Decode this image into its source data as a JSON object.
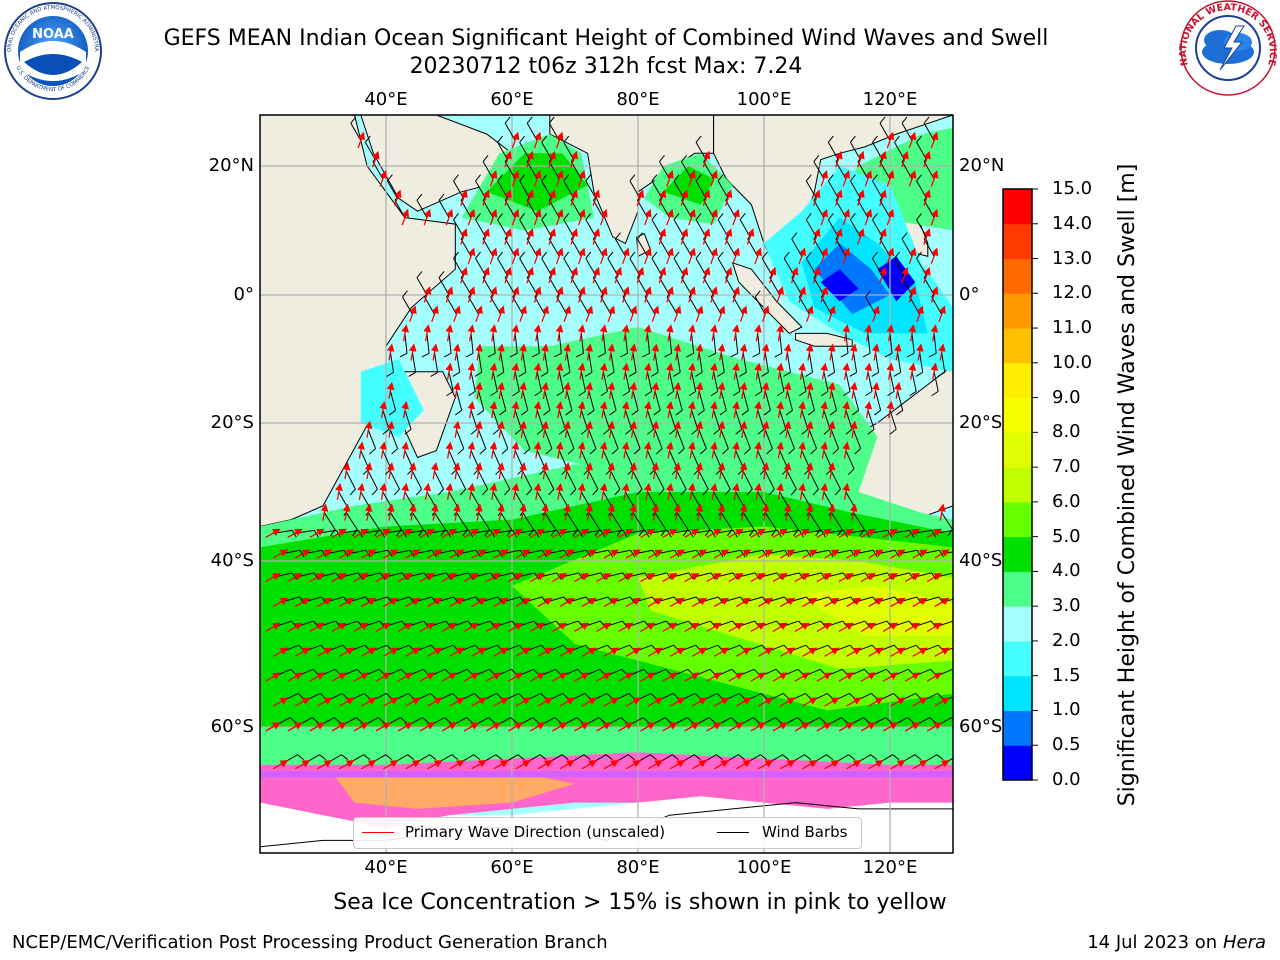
{
  "header": {
    "title_line1": "GEFS MEAN Indian Ocean Significant Height of Combined Wind Waves and Swell",
    "title_line2": "20230712 t06z 312h fcst   Max: 7.24"
  },
  "map": {
    "lon_ticks": [
      "40°E",
      "60°E",
      "80°E",
      "100°E",
      "120°E"
    ],
    "lat_ticks": [
      "20°N",
      "0°",
      "20°S",
      "40°S",
      "60°S"
    ],
    "lon_values": [
      40,
      60,
      80,
      100,
      120
    ],
    "lat_values": [
      20,
      0,
      -20,
      -40,
      -60
    ],
    "extent": {
      "lon_min": 20,
      "lon_max": 130,
      "lat_min": -70,
      "lat_max": 28
    },
    "colors": {
      "land": "#efede0",
      "sea_ice": "#ff66cc",
      "coastline": "#000000",
      "grid": "#b0b0b0",
      "wave_arrow": "#ff0000",
      "wind_barb": "#000000"
    }
  },
  "legend": {
    "wave_label": "Primary Wave Direction (unscaled)",
    "wind_label": "Wind Barbs",
    "wave_color": "#ff0000",
    "wind_color": "#000000"
  },
  "colorbar": {
    "label": "Significant Height of Combined Wind Waves and Swell [m]",
    "ticks": [
      "0.0",
      "0.5",
      "1.0",
      "1.5",
      "2.0",
      "3.0",
      "4.0",
      "5.0",
      "6.0",
      "7.0",
      "8.0",
      "9.0",
      "10.0",
      "11.0",
      "12.0",
      "13.0",
      "14.0",
      "15.0"
    ],
    "colors": [
      "#0000ff",
      "#0077ff",
      "#00e5ff",
      "#44ffff",
      "#a6ffff",
      "#4dff88",
      "#00e000",
      "#66ff00",
      "#c0ff00",
      "#e0ff00",
      "#f5ff00",
      "#ffee00",
      "#ffc000",
      "#ff9900",
      "#ff6a00",
      "#ff3a00",
      "#ff0000"
    ]
  },
  "caption": "Sea Ice Concentration > 15% is shown in pink to yellow",
  "footer": {
    "left": "NCEP/EMC/Verification Post Processing Product Generation Branch",
    "right_prefix": "14 Jul 2023 on ",
    "right_italic": "Hera"
  },
  "logos": {
    "noaa_text": "NOAA",
    "noaa_ring_top": "NATIONAL OCEANIC AND ATMOSPHERIC ADMINISTRATION",
    "noaa_ring_bottom": "U.S. DEPARTMENT OF COMMERCE",
    "nws_ring": "NATIONAL WEATHER SERVICE"
  }
}
